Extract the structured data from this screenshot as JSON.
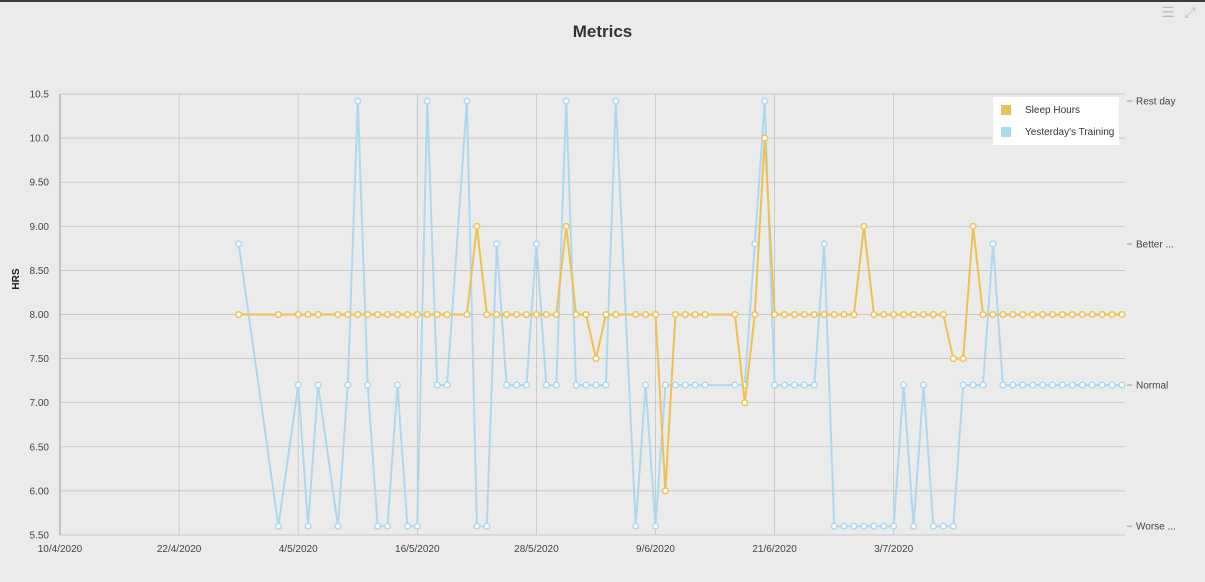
{
  "title": "Metrics",
  "toolbar": {
    "menu_icon": "menu-icon",
    "collapse_icon": "collapse-icon"
  },
  "colors": {
    "sleep": "#f0c051",
    "training": "#acd8f2",
    "background": "#ebebeb",
    "grid": "#bdbdbd"
  },
  "chart_data": {
    "type": "line",
    "title": "Metrics",
    "ylabel": "HRS",
    "ylim": [
      5.5,
      10.5
    ],
    "y_ticks": [
      "10.5",
      "10.0",
      "9.50",
      "9.00",
      "8.50",
      "8.00",
      "7.50",
      "7.00",
      "6.50",
      "6.00",
      "5.50"
    ],
    "x_ticks": [
      "10/4/2020",
      "22/4/2020",
      "4/5/2020",
      "16/5/2020",
      "28/5/2020",
      "9/6/2020",
      "21/6/2020",
      "3/7/2020"
    ],
    "right_axis_labels": [
      "Rest day",
      "Better ...",
      "Normal",
      "Worse ..."
    ],
    "right_axis_values": [
      10.42,
      8.8,
      7.2,
      5.6
    ],
    "grid": true,
    "legend_position": "top-right",
    "series": [
      {
        "name": "Sleep Hours",
        "color": "#f0c051",
        "x": [
          18,
          22,
          24,
          25,
          26,
          28,
          29,
          30,
          31,
          32,
          33,
          34,
          35,
          36,
          37,
          38,
          39,
          41,
          42,
          43,
          44,
          45,
          46,
          47,
          48,
          49,
          50,
          51,
          52,
          53,
          54,
          55,
          56,
          58,
          59,
          60,
          61,
          62,
          63,
          64,
          65,
          68,
          69,
          70,
          71,
          72,
          73,
          74,
          75,
          76,
          77,
          78,
          79,
          80,
          81,
          82,
          83,
          84,
          85,
          86,
          87,
          88,
          89,
          90,
          91,
          92,
          93,
          94,
          95,
          96,
          97,
          98,
          99,
          100,
          101,
          102,
          103,
          104,
          105,
          106,
          107
        ],
        "y": [
          8,
          8,
          8,
          8,
          8,
          8,
          8,
          8,
          8,
          8,
          8,
          8,
          8,
          8,
          8,
          8,
          8,
          8,
          9,
          8,
          8,
          8,
          8,
          8,
          8,
          8,
          8,
          9,
          8,
          8,
          7.5,
          8,
          8,
          8,
          8,
          8,
          6,
          8,
          8,
          8,
          8,
          8,
          7,
          8,
          10,
          8,
          8,
          8,
          8,
          8,
          8,
          8,
          8,
          8,
          9,
          8,
          8,
          8,
          8,
          8,
          8,
          8,
          8,
          7.5,
          7.5,
          9,
          8,
          8,
          8,
          8,
          8,
          8,
          8,
          8,
          8,
          8,
          8,
          8,
          8,
          8,
          8
        ]
      },
      {
        "name": "Yesterday's Training",
        "color": "#acd8f2",
        "x": [
          18,
          22,
          24,
          25,
          26,
          28,
          29,
          30,
          31,
          32,
          33,
          34,
          35,
          36,
          37,
          38,
          39,
          41,
          42,
          43,
          44,
          45,
          46,
          47,
          48,
          49,
          50,
          51,
          52,
          53,
          54,
          55,
          56,
          58,
          59,
          60,
          61,
          62,
          63,
          64,
          65,
          68,
          69,
          70,
          71,
          72,
          73,
          74,
          75,
          76,
          77,
          78,
          79,
          80,
          81,
          82,
          83,
          84,
          85,
          86,
          87,
          88,
          89,
          90,
          91,
          92,
          93,
          94,
          95,
          96,
          97,
          98,
          99,
          100,
          101,
          102,
          103,
          104,
          105,
          106,
          107
        ],
        "y": [
          8.8,
          5.6,
          7.2,
          5.6,
          7.2,
          5.6,
          7.2,
          10.42,
          7.2,
          5.6,
          5.6,
          7.2,
          5.6,
          5.6,
          10.42,
          7.2,
          7.2,
          10.42,
          5.6,
          5.6,
          8.8,
          7.2,
          7.2,
          7.2,
          8.8,
          7.2,
          7.2,
          10.42,
          7.2,
          7.2,
          7.2,
          7.2,
          10.42,
          5.6,
          7.2,
          5.6,
          7.2,
          7.2,
          7.2,
          7.2,
          7.2,
          7.2,
          7.2,
          8.8,
          10.42,
          7.2,
          7.2,
          7.2,
          7.2,
          7.2,
          8.8,
          5.6,
          5.6,
          5.6,
          5.6,
          5.6,
          5.6,
          5.6,
          7.2,
          5.6,
          7.2,
          5.6,
          5.6,
          5.6,
          7.2,
          7.2,
          7.2,
          8.8,
          7.2,
          7.2,
          7.2,
          7.2,
          7.2,
          7.2,
          7.2,
          7.2,
          7.2,
          7.2,
          7.2,
          7.2,
          7.2
        ]
      }
    ]
  }
}
